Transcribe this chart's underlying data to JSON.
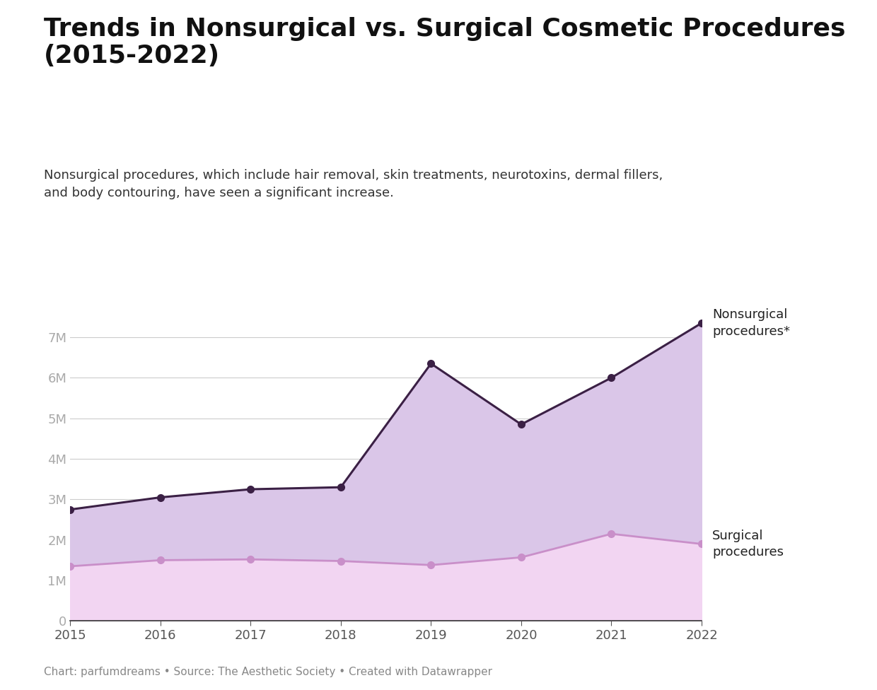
{
  "title": "Trends in Nonsurgical vs. Surgical Cosmetic Procedures\n(2015-2022)",
  "subtitle": "Nonsurgical procedures, which include hair removal, skin treatments, neurotoxins, dermal fillers,\nand body contouring, have seen a significant increase.",
  "footer": "Chart: parfumdreams • Source: The Aesthetic Society • Created with Datawrapper",
  "years": [
    2015,
    2016,
    2017,
    2018,
    2019,
    2020,
    2021,
    2022
  ],
  "nonsurgical": [
    2750000,
    3050000,
    3250000,
    3300000,
    6350000,
    4850000,
    6000000,
    7350000
  ],
  "surgical": [
    1350000,
    1500000,
    1520000,
    1480000,
    1380000,
    1570000,
    2150000,
    1900000
  ],
  "nonsurgical_color": "#3b2045",
  "surgical_color": "#c98fc9",
  "nonsurgical_fill": "#dac6e8",
  "surgical_fill": "#f2d5f2",
  "background_color": "#ffffff",
  "title_fontsize": 26,
  "subtitle_fontsize": 13,
  "footer_fontsize": 11,
  "axis_tick_fontsize": 13,
  "label_fontsize": 13,
  "ylim": [
    0,
    8000000
  ],
  "yticks": [
    0,
    1000000,
    2000000,
    3000000,
    4000000,
    5000000,
    6000000,
    7000000
  ],
  "ytick_labels": [
    "0",
    "1M",
    "2M",
    "3M",
    "4M",
    "5M",
    "6M",
    "7M"
  ],
  "nonsurgical_label": "Nonsurgical\nprocedures*",
  "surgical_label": "Surgical\nprocedures"
}
